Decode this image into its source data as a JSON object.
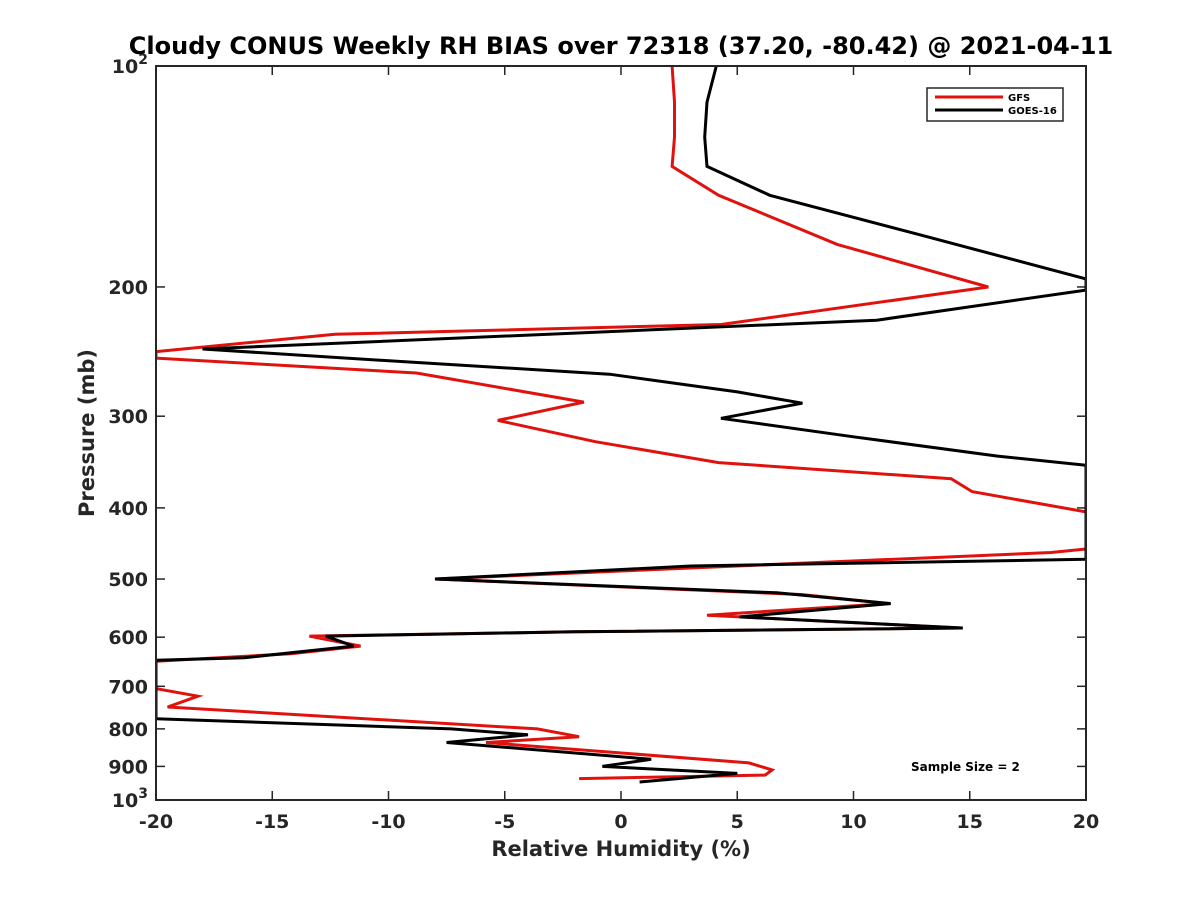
{
  "chart_data": {
    "type": "line",
    "title": "Cloudy CONUS Weekly RH BIAS over 72318 (37.20, -80.42) @ 2021-04-11",
    "xlabel": "Relative Humidity (%)",
    "ylabel": "Pressure (mb)",
    "xlim": [
      -20,
      20
    ],
    "ylim": [
      100,
      1000
    ],
    "yscale": "log",
    "y_reversed": true,
    "x_ticks": [
      -20,
      -15,
      -10,
      -5,
      0,
      5,
      10,
      15,
      20
    ],
    "x_tick_labels": [
      "-20",
      "-15",
      "-10",
      "-5",
      "0",
      "5",
      "10",
      "15",
      "20"
    ],
    "y_ticks": [
      100,
      200,
      300,
      400,
      500,
      600,
      700,
      800,
      900,
      1000
    ],
    "y_tick_labels": [
      {
        "base": "10",
        "exp": "2"
      },
      {
        "base": "200",
        "exp": ""
      },
      {
        "base": "300",
        "exp": ""
      },
      {
        "base": "400",
        "exp": ""
      },
      {
        "base": "500",
        "exp": ""
      },
      {
        "base": "600",
        "exp": ""
      },
      {
        "base": "700",
        "exp": ""
      },
      {
        "base": "800",
        "exp": ""
      },
      {
        "base": "900",
        "exp": ""
      },
      {
        "base": "10",
        "exp": "3"
      }
    ],
    "legend_position": "top-right",
    "annotation": "Sample Size = 2",
    "series": [
      {
        "name": "GFS",
        "color": "#e0120e",
        "points": [
          {
            "x": 2.2,
            "y": 100
          },
          {
            "x": 2.3,
            "y": 112
          },
          {
            "x": 2.3,
            "y": 125
          },
          {
            "x": 2.2,
            "y": 137
          },
          {
            "x": 4.2,
            "y": 150
          },
          {
            "x": 9.3,
            "y": 175
          },
          {
            "x": 15.8,
            "y": 200
          },
          {
            "x": 4.3,
            "y": 225
          },
          {
            "x": -12.3,
            "y": 232
          },
          {
            "x": -20.0,
            "y": 245
          },
          {
            "x": -20.0,
            "y": 250
          },
          {
            "x": -8.8,
            "y": 262
          },
          {
            "x": -1.6,
            "y": 287
          },
          {
            "x": -5.3,
            "y": 304
          },
          {
            "x": -1.1,
            "y": 325
          },
          {
            "x": 4.2,
            "y": 347
          },
          {
            "x": 14.2,
            "y": 365
          },
          {
            "x": 15.1,
            "y": 380
          },
          {
            "x": 20.0,
            "y": 405
          },
          {
            "x": 20.0,
            "y": 455
          },
          {
            "x": 18.5,
            "y": 460
          },
          {
            "x": 5.0,
            "y": 480
          },
          {
            "x": -8.0,
            "y": 500
          },
          {
            "x": 7.8,
            "y": 525
          },
          {
            "x": 11.5,
            "y": 540
          },
          {
            "x": 3.7,
            "y": 560
          },
          {
            "x": 14.6,
            "y": 583
          },
          {
            "x": -2.0,
            "y": 590
          },
          {
            "x": -13.4,
            "y": 598
          },
          {
            "x": -11.2,
            "y": 617
          },
          {
            "x": -14.2,
            "y": 632
          },
          {
            "x": -20.0,
            "y": 647
          },
          {
            "x": -20.0,
            "y": 705
          },
          {
            "x": -18.2,
            "y": 722
          },
          {
            "x": -19.5,
            "y": 747
          },
          {
            "x": -3.6,
            "y": 800
          },
          {
            "x": -1.8,
            "y": 820
          },
          {
            "x": -5.8,
            "y": 835
          },
          {
            "x": 5.5,
            "y": 890
          },
          {
            "x": 6.5,
            "y": 910
          },
          {
            "x": 6.2,
            "y": 925
          },
          {
            "x": -1.8,
            "y": 935
          }
        ]
      },
      {
        "name": "GOES-16",
        "color": "#000000",
        "points": [
          {
            "x": 4.1,
            "y": 100
          },
          {
            "x": 3.7,
            "y": 112
          },
          {
            "x": 3.6,
            "y": 125
          },
          {
            "x": 3.7,
            "y": 137
          },
          {
            "x": 6.4,
            "y": 150
          },
          {
            "x": 12.9,
            "y": 170
          },
          {
            "x": 20.0,
            "y": 195
          },
          {
            "x": 20.0,
            "y": 202
          },
          {
            "x": 11.0,
            "y": 222
          },
          {
            "x": -18.0,
            "y": 243
          },
          {
            "x": -9.2,
            "y": 253
          },
          {
            "x": -0.5,
            "y": 263
          },
          {
            "x": 5.0,
            "y": 278
          },
          {
            "x": 7.8,
            "y": 288
          },
          {
            "x": 4.3,
            "y": 302
          },
          {
            "x": 10.0,
            "y": 320
          },
          {
            "x": 16.2,
            "y": 340
          },
          {
            "x": 20.0,
            "y": 350
          },
          {
            "x": 20.0,
            "y": 470
          },
          {
            "x": 3.0,
            "y": 480
          },
          {
            "x": -8.0,
            "y": 500
          },
          {
            "x": 6.7,
            "y": 522
          },
          {
            "x": 11.6,
            "y": 540
          },
          {
            "x": 5.1,
            "y": 563
          },
          {
            "x": 14.7,
            "y": 583
          },
          {
            "x": -2.0,
            "y": 590
          },
          {
            "x": -12.7,
            "y": 598
          },
          {
            "x": -11.5,
            "y": 617
          },
          {
            "x": -16.2,
            "y": 640
          },
          {
            "x": -20.0,
            "y": 645
          },
          {
            "x": -20.0,
            "y": 775
          },
          {
            "x": -7.3,
            "y": 800
          },
          {
            "x": -4.0,
            "y": 815
          },
          {
            "x": -7.5,
            "y": 835
          },
          {
            "x": 1.3,
            "y": 880
          },
          {
            "x": -0.8,
            "y": 900
          },
          {
            "x": 5.0,
            "y": 920
          },
          {
            "x": 0.8,
            "y": 945
          }
        ]
      }
    ]
  }
}
